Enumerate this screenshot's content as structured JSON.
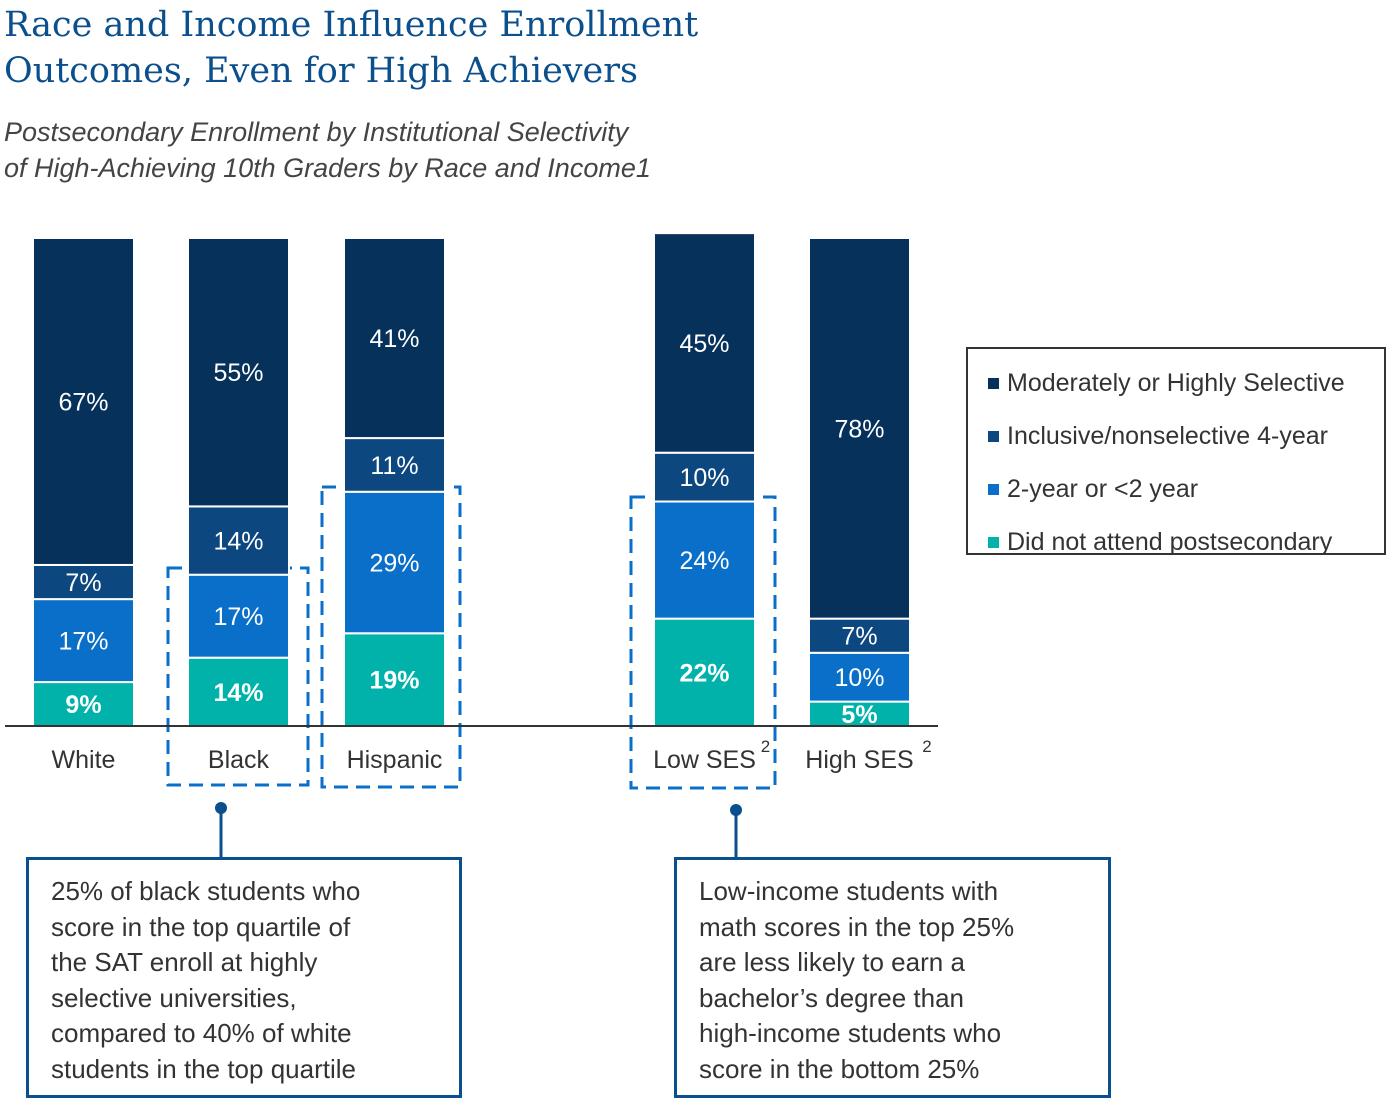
{
  "title": "Race and Income Influence Enrollment Outcomes, Even for High Achievers",
  "subtitle_line1": "Postsecondary Enrollment by Institutional Selectivity",
  "subtitle_line2": "of High-Achieving 10th Graders by Race and Income1",
  "chart_data": {
    "type": "bar",
    "stacked": true,
    "categories": [
      "White",
      "Black",
      "Hispanic",
      "Low SES",
      "High SES"
    ],
    "category_superscripts": [
      "",
      "",
      "",
      "2",
      "2"
    ],
    "series": [
      {
        "name": "Did not attend postsecondary",
        "values": [
          9,
          14,
          19,
          22,
          5
        ],
        "labels": [
          "9%",
          "14%",
          "19%",
          "22%",
          "5%"
        ],
        "color": "#00b2a9"
      },
      {
        "name": "2-year or <2 year",
        "values": [
          17,
          17,
          29,
          24,
          10
        ],
        "labels": [
          "17%",
          "17%",
          "29%",
          "24%",
          "10%"
        ],
        "color": "#0a6fc9"
      },
      {
        "name": "Inclusive/nonselective 4-year",
        "values": [
          7,
          14,
          11,
          10,
          7
        ],
        "labels": [
          "7%",
          "14%",
          "11%",
          "10%",
          "7%"
        ],
        "color": "#0d4780"
      },
      {
        "name": "Moderately or Highly Selective",
        "values": [
          67,
          55,
          41,
          45,
          78
        ],
        "labels": [
          "67%",
          "55%",
          "41%",
          "45%",
          "78%"
        ],
        "color": "#06315a"
      }
    ],
    "highlighted_categories": [
      "Black",
      "Hispanic",
      "Low SES"
    ],
    "legend_placement": "right",
    "grid": false
  },
  "legend": [
    {
      "label": "Moderately or Highly Selective",
      "color": "#06315a"
    },
    {
      "label": "Inclusive/nonselective 4-year",
      "color": "#0d4780"
    },
    {
      "label": "2-year or <2 year",
      "color": "#0a6fc9"
    },
    {
      "label": "Did not attend postsecondary",
      "color": "#00b2a9"
    }
  ],
  "callouts": {
    "left": "25% of black students who\nscore in the top quartile of\nthe SAT enroll at highly\nselective universities,\ncompared to 40% of white\nstudents in the top quartile",
    "right": "Low-income students with\nmath scores in the top 25%\nare less likely to earn a\nbachelor’s degree than\nhigh-income students who\nscore in the bottom 25%"
  }
}
